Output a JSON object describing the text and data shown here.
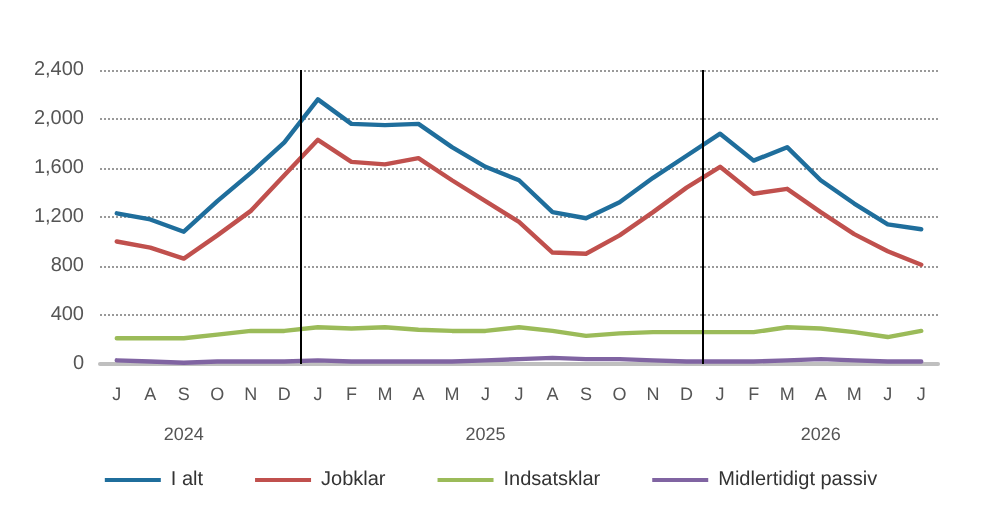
{
  "chart_data": {
    "type": "line",
    "categories": [
      "J",
      "A",
      "S\n\n2024",
      "O",
      "N",
      "D",
      "J",
      "F",
      "M",
      "A",
      "M",
      "J\n\n2025",
      "J",
      "A",
      "S",
      "O",
      "N",
      "D",
      "J",
      "F",
      "M",
      "A\n\n2026",
      "M",
      "J",
      "J"
    ],
    "series": [
      {
        "name": "I alt",
        "color": "#1f6e9c",
        "values": [
          1230,
          1180,
          1080,
          1330,
          1560,
          1810,
          2160,
          1960,
          1950,
          1960,
          1770,
          1610,
          1500,
          1240,
          1190,
          1320,
          1520,
          1700,
          1880,
          1660,
          1770,
          1500,
          1310,
          1140,
          1100
        ]
      },
      {
        "name": "Jobklar",
        "color": "#c0504d",
        "values": [
          1000,
          950,
          860,
          1050,
          1250,
          1540,
          1830,
          1650,
          1630,
          1680,
          1500,
          1330,
          1160,
          910,
          900,
          1050,
          1240,
          1440,
          1610,
          1390,
          1430,
          1240,
          1060,
          920,
          810
        ]
      },
      {
        "name": "Indsatsklar",
        "color": "#9bbb59",
        "values": [
          210,
          210,
          210,
          240,
          270,
          270,
          300,
          290,
          300,
          280,
          270,
          270,
          300,
          270,
          230,
          250,
          260,
          260,
          260,
          260,
          300,
          290,
          260,
          220,
          270
        ]
      },
      {
        "name": "Midlertidigt passiv",
        "color": "#8064a2",
        "values": [
          30,
          20,
          10,
          20,
          20,
          20,
          30,
          20,
          20,
          20,
          20,
          30,
          40,
          50,
          40,
          40,
          30,
          20,
          20,
          20,
          30,
          40,
          30,
          20,
          20
        ]
      }
    ],
    "ylim": [
      0,
      2400
    ],
    "yticks": [
      0,
      400,
      800,
      {
        "value": 1200,
        "label": "1,200"
      },
      {
        "value": 1600,
        "label": "1,600"
      },
      {
        "value": 2000,
        "label": "2,000"
      },
      {
        "value": 2400,
        "label": "2,400"
      }
    ],
    "grid": "y",
    "legend": "bottom",
    "marker": "none",
    "line_style": "solid"
  }
}
